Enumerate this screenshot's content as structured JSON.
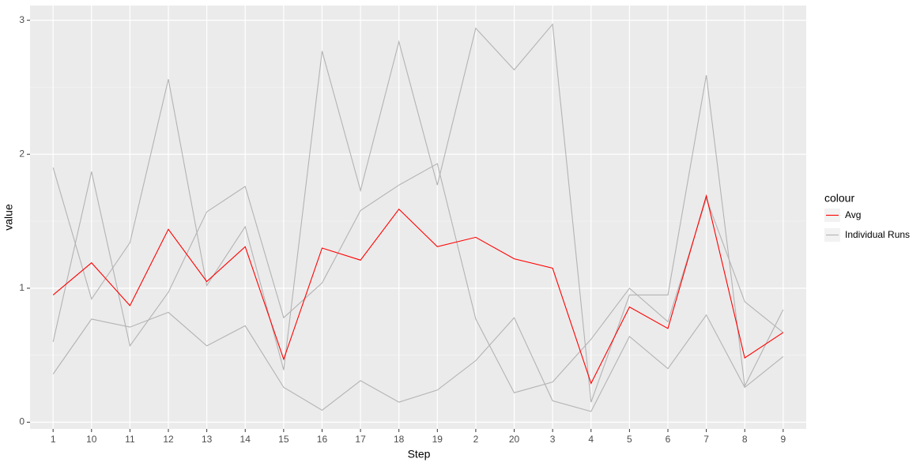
{
  "chart_data": {
    "type": "line",
    "x_label": "Step",
    "y_label": "value",
    "legend_title": "colour",
    "categories": [
      "1",
      "10",
      "11",
      "12",
      "13",
      "14",
      "15",
      "16",
      "17",
      "18",
      "19",
      "2",
      "20",
      "3",
      "4",
      "5",
      "6",
      "7",
      "8",
      "9"
    ],
    "series": [
      {
        "name": "Avg",
        "color": "#ff0000",
        "values": [
          0.95,
          1.19,
          0.87,
          1.44,
          1.05,
          1.31,
          0.47,
          1.3,
          1.21,
          1.59,
          1.31,
          1.38,
          1.22,
          1.15,
          0.29,
          0.86,
          0.7,
          1.69,
          0.48,
          0.67
        ]
      },
      {
        "name": "Individual Runs",
        "color": "#b3b3b3",
        "values": [
          1.9,
          0.92,
          1.34,
          2.56,
          1.02,
          1.46,
          0.39,
          2.77,
          1.73,
          2.84,
          1.77,
          2.94,
          2.63,
          2.97,
          0.15,
          0.95,
          0.95,
          2.59,
          0.27,
          0.84
        ]
      },
      {
        "name": "Individual Runs",
        "color": "#b3b3b3",
        "values": [
          0.6,
          1.87,
          0.57,
          0.97,
          1.57,
          1.76,
          0.78,
          1.04,
          1.58,
          1.77,
          1.93,
          0.77,
          0.22,
          0.3,
          0.62,
          1.0,
          0.75,
          1.67,
          0.9,
          0.67
        ]
      },
      {
        "name": "Individual Runs",
        "color": "#b3b3b3",
        "values": [
          0.36,
          0.77,
          0.71,
          0.82,
          0.57,
          0.72,
          0.26,
          0.09,
          0.31,
          0.15,
          0.24,
          0.46,
          0.78,
          0.16,
          0.08,
          0.64,
          0.4,
          0.8,
          0.26,
          0.49
        ]
      }
    ],
    "ylim": [
      -0.05,
      3.11
    ],
    "yticks": [
      0,
      1,
      2,
      3
    ],
    "grid": true,
    "legend_position": "right"
  }
}
